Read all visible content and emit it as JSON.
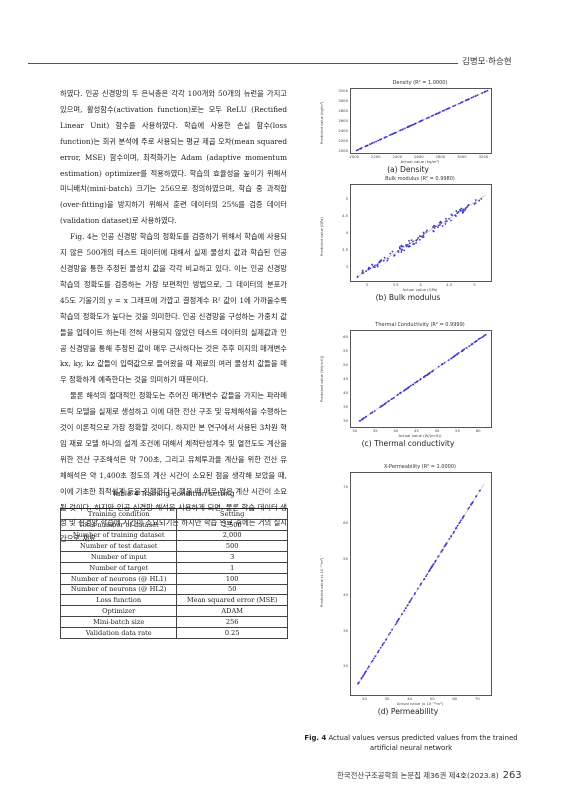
{
  "header": {
    "authors": "김병모·하승현"
  },
  "body_paragraphs": [
    {
      "indent": false,
      "text": "하였다. 인공 신경망의 두 은닉층은 각각 100개와 50개의 뉴런을 가지고 있으며, 활성함수(activation function)로는 모두 ReLU (Rectified Linear Unit) 함수를 사용하였다. 학습에 사용한 손실 함수(loss function)는 회귀 분석에 주로 사용되는 평균 제곱 오차(mean squared error, MSE) 함수이며, 최적화기는 Adam (adaptive momentum estimation) optimizer를 적용하였다. 학습의 효율성을 높이기 위해서 미니배치(mini-batch) 크기는 256으로 정의하였으며, 학습 중 과적합(over-fitting)을 방지하기 위해서 훈련 데이터의 25%를 검증 데이터(validation dataset)로 사용하였다."
    },
    {
      "indent": true,
      "text": "Fig. 4는 인공 신경망 학습의 정확도를 검증하기 위해서 학습에 사용되지 않은 500개의 테스트 데이터에 대해서 실제 물성치 값과 학습된 인공 신경망을 통한 추정된 물성치 값을 각각 비교하고 있다. 이는 인공 신경망 학습의 정확도를 검증하는 가장 보편적인 방법으로, 그 데이터의 분포가 45도 기울기의 y = x 그래프에 가깝고 결정계수 R² 값이 1에 가까울수록 학습의 정확도가 높다는 것을 의미한다. 인공 신경망을 구성하는 가중치 값들을 업데이트 하는데 전혀 사용되지 않았던 테스트 데이터의 실제값과 인공 신경망을 통해 추정된 값이 매우 근사하다는 것은 추후 미지의 매개변수 kx, ky, kz 값들이 입력값으로 들어왔을 때 재료의 여러 물성치 값들을 매우 정확하게 예측한다는 것을 의미하기 때문이다."
    },
    {
      "indent": true,
      "text": "물론 해석의 절대적인 정확도는 주어진 매개변수 값들을 가지는 파라메트릭 모델을 실제로 생성하고 이에 대한 전산 구조 및 유체해석을 수행하는 것이 이론적으로 가장 정확할 것이다. 하지만 본 연구에서 사용된 3차원 혁임 재료 모델 하나의 설계 조건에 대해서 체적탄성계수 및 열전도도 계산을 위한 전산 구조해석은 약 700초, 그리고 유체투과율 계산을 위한 전산 유체해석은 약 1,400초 정도의 계산 시간이 소요된 점을 생각해 보았을 때, 이에 기초한 최적설계 등을 진행한다고 했을 때 매우 많은 계산 시간이 소요될 것이다. 하지만 인공 신경망 해석을 사용하게 되면, 물론 학습 데이터 생성 및 신경망 학습에 시간이 소요되기는 하지만 학습 완료 후에는 거의 실시간으로 재료"
    }
  ],
  "table": {
    "caption": "Table 4  Training condition setting",
    "headers": [
      "Training condition",
      "Setting"
    ],
    "rows": [
      [
        "Total number of dataset",
        "2,500"
      ],
      [
        "Number of training dataset",
        "2,000"
      ],
      [
        "Number of test dataset",
        "500"
      ],
      [
        "Number of input",
        "3"
      ],
      [
        "Number of target",
        "1"
      ],
      [
        "Number of neurons (@ HL1)",
        "100"
      ],
      [
        "Number of neurons (@ HL2)",
        "50"
      ],
      [
        "Loss function",
        "Mean squared error (MSE)"
      ],
      [
        "Optimizer",
        "ADAM"
      ],
      [
        "Mini-batch size",
        "256"
      ],
      [
        "Validation data rate",
        "0.25"
      ]
    ]
  },
  "chart_data": [
    {
      "type": "scatter",
      "title": "Density (R² = 1.0000)",
      "xlabel": "Actual value (kg/m³)",
      "ylabel": "Predicted value (kg/m³)",
      "xlim": [
        1950,
        3250
      ],
      "ylim": [
        1950,
        3250
      ],
      "xticks": [
        2000,
        2200,
        2400,
        2600,
        2800,
        3000,
        3200
      ],
      "yticks": [
        2000,
        2200,
        2400,
        2600,
        2800,
        3000,
        3200
      ],
      "fit": "y = x",
      "r2": 1.0,
      "n_points": 500,
      "x_range": [
        2000,
        3220
      ],
      "caption": "(a) Density",
      "color": "#3a3ad0"
    },
    {
      "type": "scatter",
      "title": "Bulk modulus (R² = 0.9980)",
      "xlabel": "Actual value (GPa)",
      "ylabel": "Predicted value (GPa)",
      "xlim": [
        2.6,
        5.2
      ],
      "ylim": [
        2.6,
        5.4
      ],
      "xticks": [
        3.0,
        3.5,
        4.0,
        4.5,
        5.0
      ],
      "yticks": [
        3.0,
        3.5,
        4.0,
        4.5,
        5.0
      ],
      "fit": "y = x",
      "r2": 0.998,
      "n_points": 500,
      "x_range": [
        2.7,
        5.1
      ],
      "caption": "(b) Bulk modulus",
      "color": "#3a3ad0"
    },
    {
      "type": "scatter",
      "title": "Thermal Conductivity (R² = 0.9999)",
      "xlabel": "Actual value (W/(m·K))",
      "ylabel": "Predicted value (W/(m·K))",
      "xlim": [
        28,
        62
      ],
      "ylim": [
        28,
        62
      ],
      "xticks": [
        30,
        35,
        40,
        45,
        50,
        55,
        60
      ],
      "yticks": [
        30,
        35,
        40,
        45,
        50,
        55,
        60
      ],
      "fit": "y = x",
      "r2": 0.9999,
      "n_points": 500,
      "x_range": [
        30,
        61
      ],
      "caption": "(c) Thermal conductivity",
      "color": "#3a3ad0"
    },
    {
      "type": "scatter",
      "title": "X-Permeability (R² = 1.0000)",
      "xlabel": "Actual value (x 10⁻¹¹m²)",
      "ylabel": "Predicted value (x 10⁻¹¹m²)",
      "xlim": [
        12,
        74
      ],
      "ylim": [
        12,
        74
      ],
      "xticks": [
        20,
        30,
        40,
        50,
        60,
        70
      ],
      "yticks": [
        20,
        30,
        40,
        50,
        60,
        70
      ],
      "fit": "y = x",
      "r2": 1.0,
      "n_points": 500,
      "x_range": [
        15,
        71
      ],
      "caption": "(d) Permeability",
      "color": "#3a3ad0"
    }
  ],
  "figure_caption": {
    "label": "Fig. 4",
    "text": "Actual values versus predicted values from the trained artificial neural network"
  },
  "footer": {
    "journal": "한국전산구조공학회 논문집 제36권 제4호(2023.8)",
    "page": "263"
  }
}
